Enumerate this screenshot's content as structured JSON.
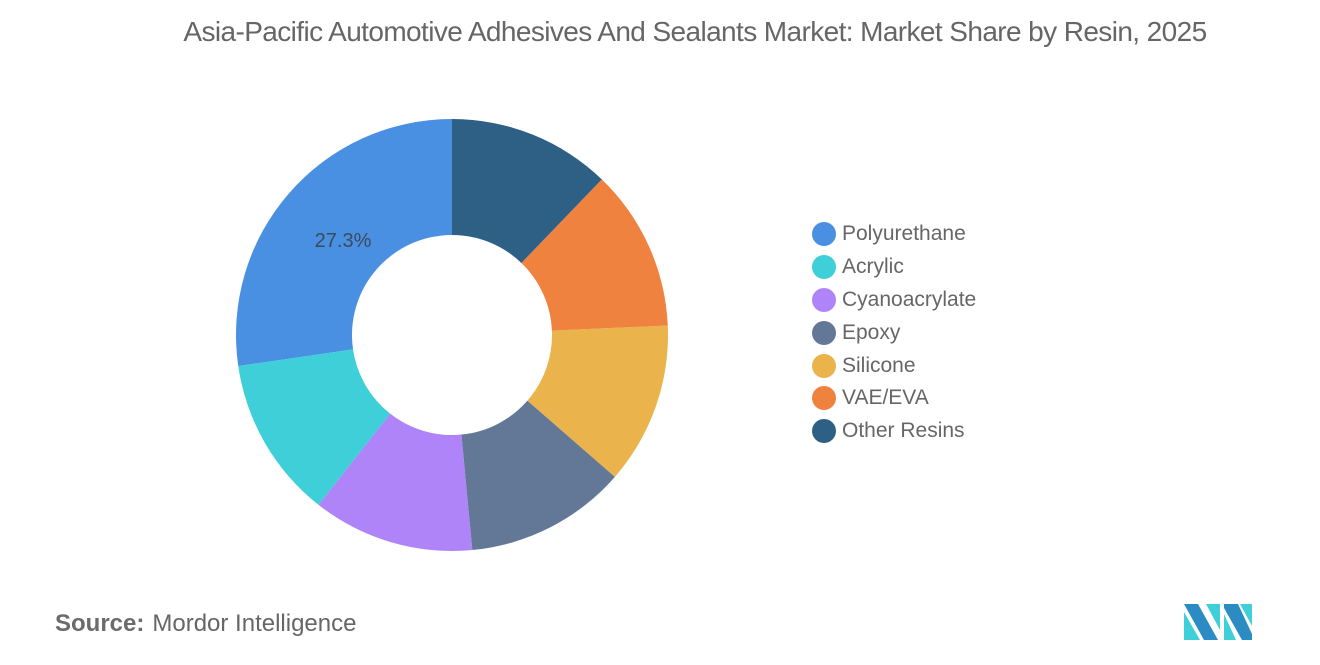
{
  "title": "Asia-Pacific Automotive Adhesives And Sealants Market: Market Share by Resin, 2025",
  "source": {
    "key": "Source:",
    "value": "Mordor Intelligence"
  },
  "logo": {
    "icon": "mordor-intelligence-logo-icon"
  },
  "chart_data": {
    "type": "pie",
    "subtype": "donut",
    "title": "Asia-Pacific Automotive Adhesives And Sealants Market: Market Share by Resin, 2025",
    "categories": [
      "Polyurethane",
      "Acrylic",
      "Cyanoacrylate",
      "Epoxy",
      "Silicone",
      "VAE/EVA",
      "Other Resins"
    ],
    "values": [
      27.3,
      12.1,
      12.1,
      12.1,
      12.1,
      12.1,
      12.2
    ],
    "colors": [
      "#4A90E2",
      "#3ECFD8",
      "#B084F9",
      "#637897",
      "#EAB34B",
      "#F08240",
      "#2E5F84"
    ],
    "data_labels": [
      {
        "category": "Polyurethane",
        "text": "27.3%"
      }
    ],
    "legend_position": "right",
    "start_angle": "12 o'clock",
    "direction": "counterclockwise",
    "unit": "%"
  },
  "legend": {
    "items": [
      {
        "label": "Polyurethane",
        "color": "#4A90E2"
      },
      {
        "label": "Acrylic",
        "color": "#3ECFD8"
      },
      {
        "label": "Cyanoacrylate",
        "color": "#B084F9"
      },
      {
        "label": "Epoxy",
        "color": "#637897"
      },
      {
        "label": "Silicone",
        "color": "#EAB34B"
      },
      {
        "label": "VAE/EVA",
        "color": "#F08240"
      },
      {
        "label": "Other Resins",
        "color": "#2E5F84"
      }
    ]
  },
  "labels": {
    "polyurethane_pct": "27.3%"
  }
}
